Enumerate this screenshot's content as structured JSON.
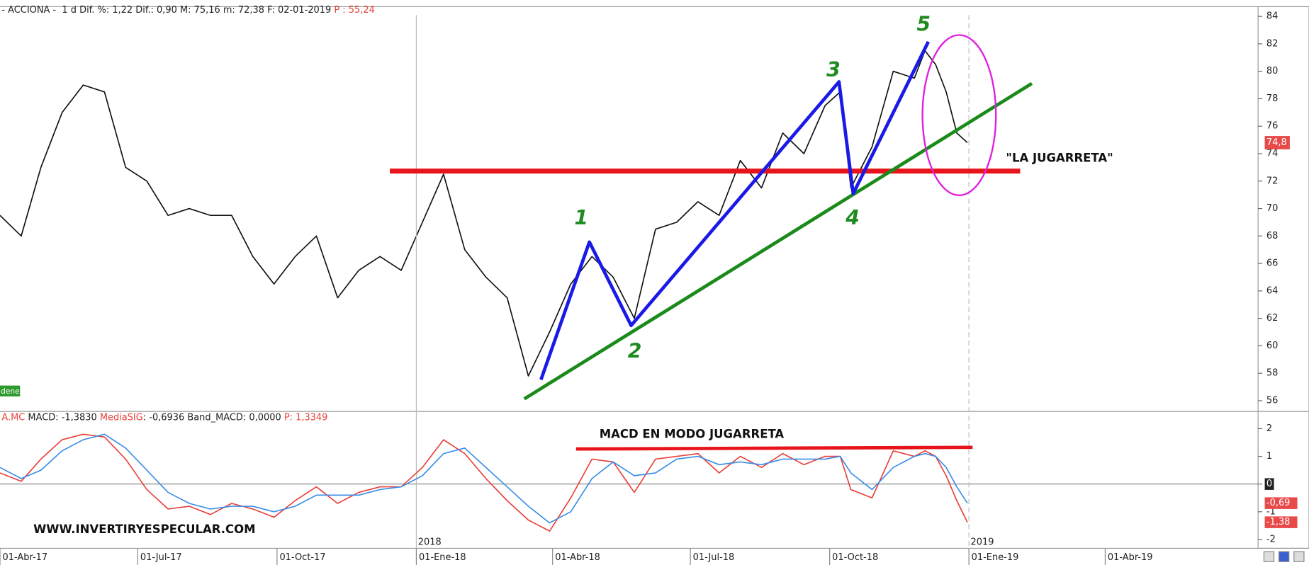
{
  "chart_data": [
    {
      "type": "line",
      "header": [
        "- ACCIONA -  1 d Dif. %: 1,22 Dif.: 0,90 M: 75,16 m: 72,38 F: 02-01-2019 ",
        "P : 55,24"
      ],
      "annotations": [
        "\"LA JUGARRETA\"",
        "1",
        "2",
        "3",
        "4",
        "5"
      ],
      "side_label": "denes",
      "x": [
        "2017-04-01",
        "2017-04-15",
        "2017-04-28",
        "2017-05-12",
        "2017-05-26",
        "2017-06-09",
        "2017-06-23",
        "2017-07-07",
        "2017-07-21",
        "2017-08-04",
        "2017-08-18",
        "2017-09-01",
        "2017-09-15",
        "2017-09-29",
        "2017-10-13",
        "2017-10-27",
        "2017-11-10",
        "2017-11-24",
        "2017-12-08",
        "2017-12-22",
        "2018-01-05",
        "2018-01-19",
        "2018-02-02",
        "2018-02-16",
        "2018-03-02",
        "2018-03-16",
        "2018-03-30",
        "2018-04-13",
        "2018-04-27",
        "2018-05-11",
        "2018-05-25",
        "2018-06-08",
        "2018-06-22",
        "2018-07-06",
        "2018-07-20",
        "2018-08-03",
        "2018-08-17",
        "2018-08-31",
        "2018-09-14",
        "2018-09-28",
        "2018-10-08",
        "2018-10-15",
        "2018-10-29",
        "2018-11-12",
        "2018-11-26",
        "2018-12-03",
        "2018-12-10",
        "2018-12-17",
        "2018-12-24",
        "2018-12-31"
      ],
      "values": [
        69.5,
        68,
        73,
        77,
        79,
        78.5,
        73,
        72,
        69.5,
        70,
        69.5,
        69.5,
        66.5,
        64.5,
        66.5,
        68,
        63.5,
        65.5,
        66.5,
        65.5,
        69,
        72.5,
        67,
        65,
        63.5,
        57.8,
        61,
        64.5,
        66.5,
        65,
        62,
        68.5,
        69,
        70.5,
        69.5,
        73.5,
        71.5,
        75.5,
        74,
        77.5,
        78.5,
        71.5,
        74.5,
        80,
        79.5,
        81.5,
        80.5,
        78.5,
        75.5,
        74.8
      ],
      "color": "#111111",
      "last_label": {
        "value": 74.8,
        "label": "74,8"
      },
      "xlim": [
        "2017-04-01",
        "2019-07-11"
      ],
      "ylim": [
        55.4,
        84.1
      ],
      "yticks": [
        56,
        58,
        60,
        62,
        64,
        66,
        68,
        70,
        72,
        74,
        76,
        78,
        80,
        82,
        84
      ]
    },
    {
      "type": "line",
      "header": [
        "A.MC ",
        ": -1,3830 ",
        ": -0,6936 Band_MACD: 0,0000 ",
        "P: 1,3349"
      ],
      "annotations": [
        "MACD EN MODO JUGARRETA",
        "WWW.INVERTIRYESPECULAR.COM"
      ],
      "x": [
        "2017-04-01",
        "2017-04-15",
        "2017-04-28",
        "2017-05-12",
        "2017-05-26",
        "2017-06-09",
        "2017-06-23",
        "2017-07-07",
        "2017-07-21",
        "2017-08-04",
        "2017-08-18",
        "2017-09-01",
        "2017-09-15",
        "2017-09-29",
        "2017-10-13",
        "2017-10-27",
        "2017-11-10",
        "2017-11-24",
        "2017-12-08",
        "2017-12-22",
        "2018-01-05",
        "2018-01-19",
        "2018-02-02",
        "2018-02-16",
        "2018-03-02",
        "2018-03-16",
        "2018-03-30",
        "2018-04-13",
        "2018-04-27",
        "2018-05-11",
        "2018-05-25",
        "2018-06-08",
        "2018-06-22",
        "2018-07-06",
        "2018-07-20",
        "2018-08-03",
        "2018-08-17",
        "2018-08-31",
        "2018-09-14",
        "2018-09-28",
        "2018-10-08",
        "2018-10-15",
        "2018-10-29",
        "2018-11-12",
        "2018-11-26",
        "2018-12-03",
        "2018-12-10",
        "2018-12-17",
        "2018-12-24",
        "2018-12-31"
      ],
      "series": [
        {
          "name": "MACD",
          "color": "#e8403a",
          "values": [
            0.4,
            0.1,
            0.9,
            1.6,
            1.8,
            1.7,
            0.9,
            -0.2,
            -0.9,
            -0.8,
            -1.1,
            -0.7,
            -0.9,
            -1.2,
            -0.6,
            -0.1,
            -0.7,
            -0.3,
            -0.1,
            -0.1,
            0.6,
            1.6,
            1.1,
            0.2,
            -0.6,
            -1.3,
            -1.7,
            -0.5,
            0.9,
            0.8,
            -0.3,
            0.9,
            1.0,
            1.1,
            0.4,
            1.0,
            0.6,
            1.1,
            0.7,
            1.0,
            1.0,
            -0.2,
            -0.5,
            1.2,
            1.0,
            1.2,
            1.0,
            0.3,
            -0.6,
            -1.38
          ]
        },
        {
          "name": "MediaSIG",
          "color": "#3a8ee8",
          "values": [
            0.6,
            0.2,
            0.5,
            1.2,
            1.6,
            1.8,
            1.3,
            0.5,
            -0.3,
            -0.7,
            -0.9,
            -0.8,
            -0.8,
            -1.0,
            -0.8,
            -0.4,
            -0.4,
            -0.4,
            -0.2,
            -0.1,
            0.3,
            1.1,
            1.3,
            0.6,
            -0.1,
            -0.8,
            -1.4,
            -1.0,
            0.2,
            0.8,
            0.3,
            0.4,
            0.9,
            1.0,
            0.7,
            0.8,
            0.7,
            0.9,
            0.9,
            0.9,
            1.0,
            0.4,
            -0.2,
            0.6,
            1.0,
            1.1,
            1.0,
            0.6,
            -0.1,
            -0.69
          ]
        }
      ],
      "value_boxes": [
        {
          "value": 0,
          "label": "0",
          "color": "#222222"
        },
        {
          "value": -0.69,
          "label": "-0,69",
          "color": "#e84a4a"
        },
        {
          "value": -1.38,
          "label": "-1,38",
          "color": "#e84a4a"
        }
      ],
      "xlim": [
        "2017-04-01",
        "2019-07-11"
      ],
      "ylim": [
        -2.32,
        2.26
      ],
      "yticks": [
        -2,
        -1,
        0,
        1,
        2
      ],
      "xticks": [
        {
          "value": "2017-04-01",
          "label": "01-Abr-17"
        },
        {
          "value": "2017-07-01",
          "label": "01-Jul-17"
        },
        {
          "value": "2017-10-01",
          "label": "01-Oct-17"
        },
        {
          "value": "2018-01-01",
          "label": "01-Ene-18"
        },
        {
          "value": "2018-04-01",
          "label": "01-Abr-18"
        },
        {
          "value": "2018-07-01",
          "label": "01-Jul-18"
        },
        {
          "value": "2018-10-01",
          "label": "01-Oct-18"
        },
        {
          "value": "2019-01-01",
          "label": "01-Ene-19"
        },
        {
          "value": "2019-04-01",
          "label": "01-Abr-19"
        }
      ],
      "year_ticks": [
        {
          "value": "2018-01-01",
          "label": "2018"
        },
        {
          "value": "2019-01-01",
          "label": "2019"
        }
      ]
    }
  ]
}
